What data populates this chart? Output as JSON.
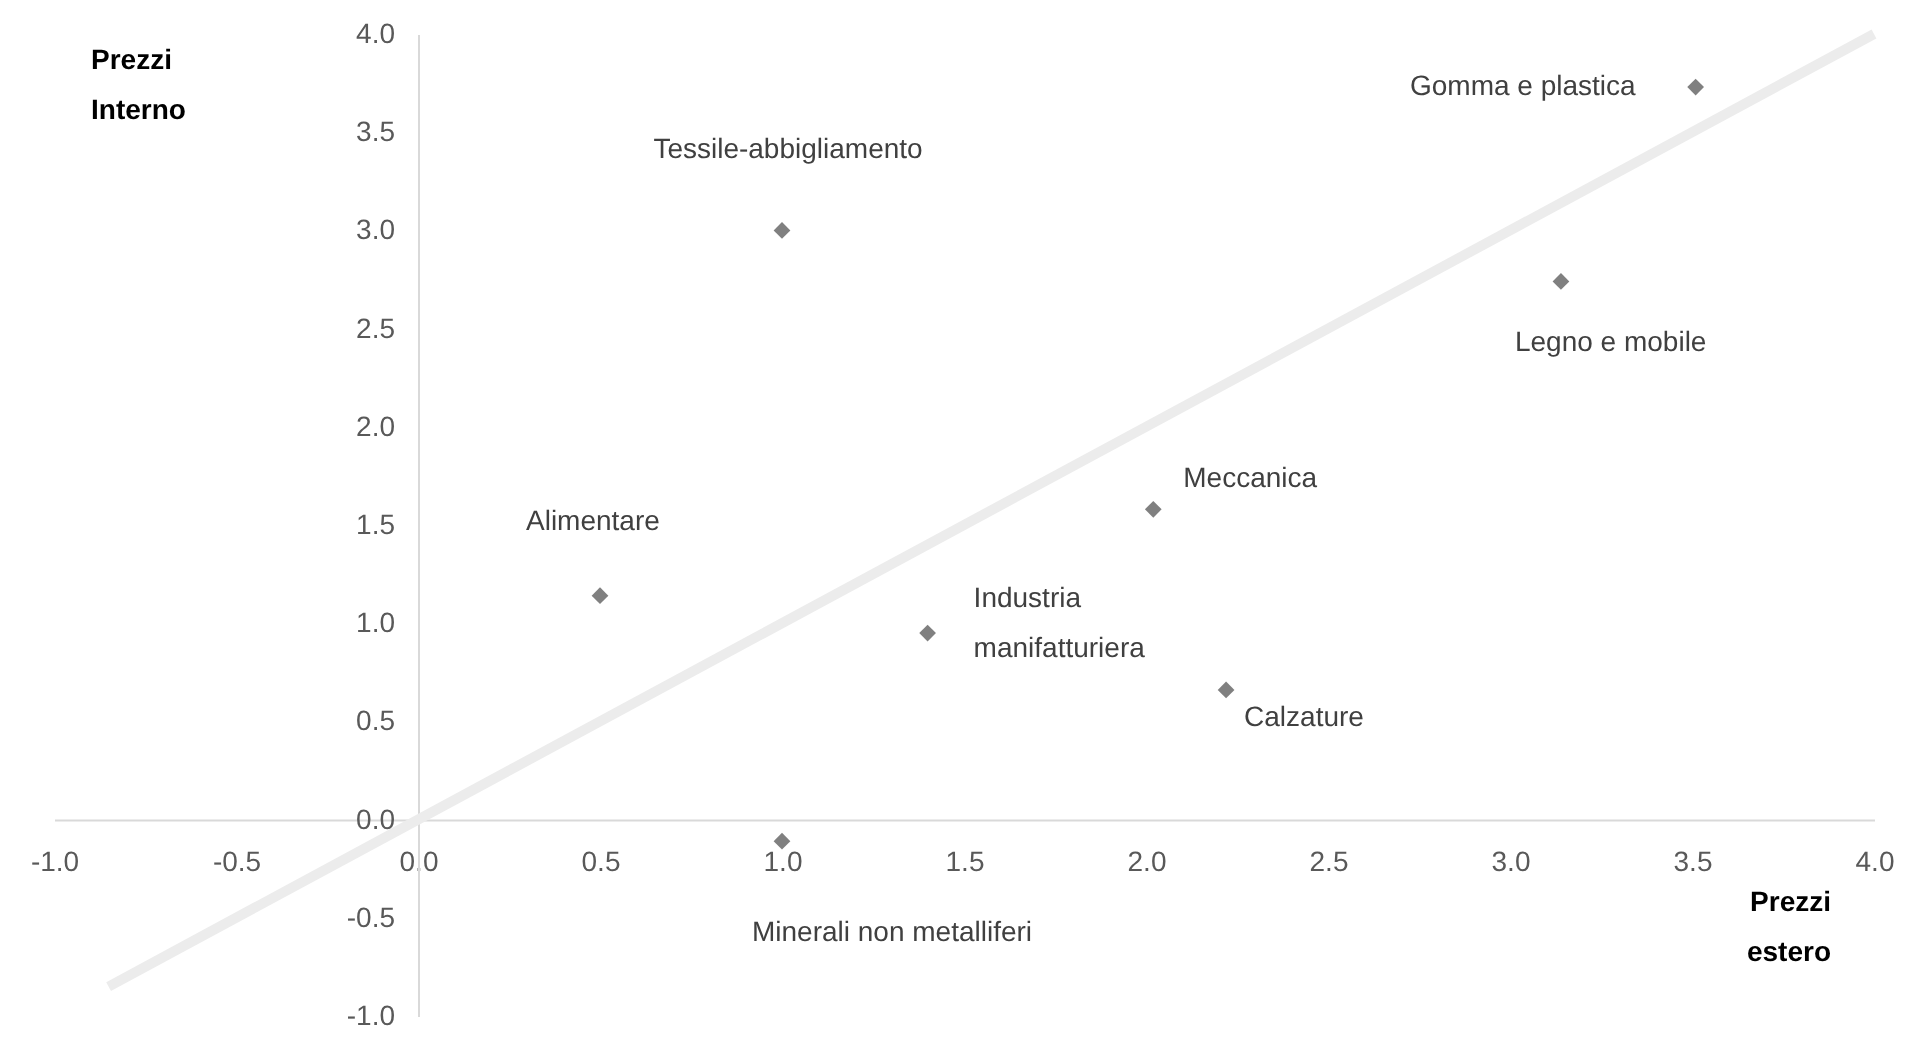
{
  "chart_data": {
    "type": "scatter",
    "xlabel": "Prezzi estero",
    "ylabel": "Prezzi Interno",
    "xlim": [
      -1,
      4
    ],
    "ylim": [
      -1,
      4
    ],
    "xticks": [
      {
        "value": -1,
        "label": "-1.0"
      },
      {
        "value": -0.5,
        "label": "-0.5"
      },
      {
        "value": 0,
        "label": "0.0"
      },
      {
        "value": 0.5,
        "label": "0.5"
      },
      {
        "value": 1,
        "label": "1.0"
      },
      {
        "value": 1.5,
        "label": "1.5"
      },
      {
        "value": 2,
        "label": "2.0"
      },
      {
        "value": 2.5,
        "label": "2.5"
      },
      {
        "value": 3,
        "label": "3.0"
      },
      {
        "value": 3.5,
        "label": "3.5"
      },
      {
        "value": 4,
        "label": "4.0"
      }
    ],
    "yticks": [
      {
        "value": -1,
        "label": "-1.0"
      },
      {
        "value": -0.5,
        "label": "-0.5"
      },
      {
        "value": 0,
        "label": "0.0"
      },
      {
        "value": 0.5,
        "label": "0.5"
      },
      {
        "value": 1,
        "label": "1.0"
      },
      {
        "value": 1.5,
        "label": "1.5"
      },
      {
        "value": 2,
        "label": "2.0"
      },
      {
        "value": 2.5,
        "label": "2.5"
      },
      {
        "value": 3,
        "label": "3.0"
      },
      {
        "value": 3.5,
        "label": "3.5"
      },
      {
        "value": 4,
        "label": "4.0"
      }
    ],
    "grid": false,
    "series": [
      {
        "color": "#808080",
        "marker": "diamond",
        "x": [
          1.0,
          3.51,
          3.14,
          2.02,
          0.5,
          1.4,
          2.22,
          1.0
        ],
        "values": [
          3.0,
          3.73,
          2.74,
          1.58,
          1.14,
          0.95,
          0.66,
          -0.11
        ]
      },
      {
        "type": "line",
        "color": "#ececec",
        "marker": "none",
        "x": [
          -0.85,
          4.0
        ],
        "values": [
          -0.85,
          4.0
        ]
      }
    ],
    "annotations": [
      {
        "text": "Tessile-abbigliamento",
        "x": 1.0,
        "y": 3.0
      },
      {
        "text": "Gomma e plastica",
        "x": 3.51,
        "y": 3.73
      },
      {
        "text": "Legno e mobile",
        "x": 3.14,
        "y": 2.74
      },
      {
        "text": "Meccanica",
        "x": 2.02,
        "y": 1.58
      },
      {
        "text": "Alimentare",
        "x": 0.5,
        "y": 1.14
      },
      {
        "text": "Industria manifatturiera",
        "x": 1.4,
        "y": 0.95
      },
      {
        "text": "Calzature",
        "x": 2.22,
        "y": 0.66
      },
      {
        "text": "Minerali non metalliferi",
        "x": 1.0,
        "y": -0.11
      }
    ]
  }
}
